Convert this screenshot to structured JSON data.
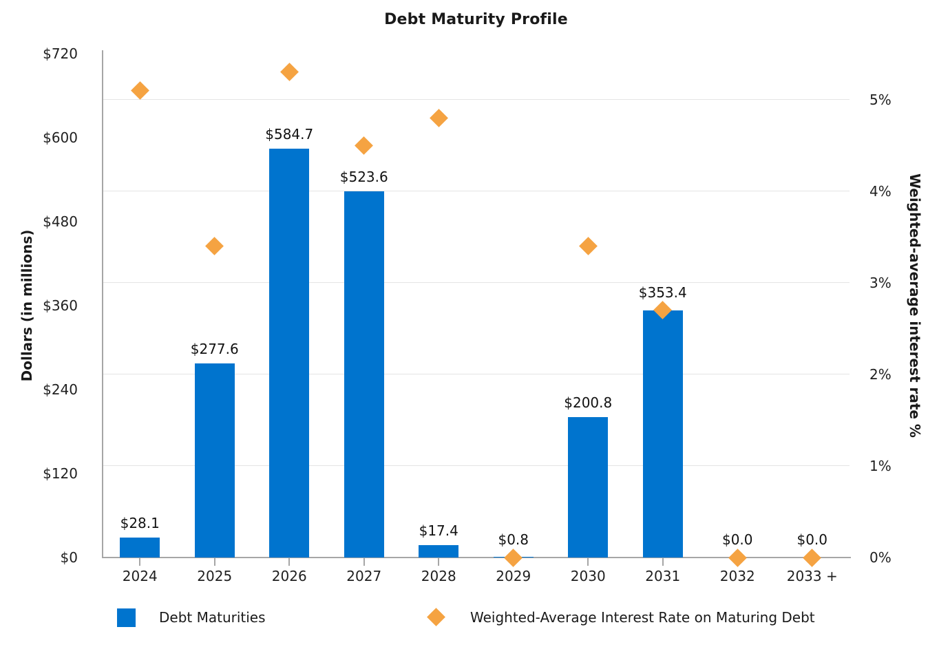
{
  "title": "Debt Maturity Profile",
  "colors": {
    "bar_blue": "#0074ce",
    "marker_orange": "#f5a342",
    "axis_gray": "#a6a6a6",
    "gridline_gray": "#e4e4e4",
    "text": "#1a1a1a"
  },
  "left_axis": {
    "title": "Dollars (in millions)",
    "ticks": [
      "$0",
      "$120",
      "$240",
      "$360",
      "$480",
      "$600",
      "$720"
    ]
  },
  "right_axis": {
    "title": "Weighted-average interest rate %",
    "ticks": [
      "0%",
      "1%",
      "2%",
      "3%",
      "4%",
      "5%"
    ]
  },
  "legend": {
    "bar_series_label": "Debt Maturities",
    "marker_series_label": "Weighted-Average Interest Rate on Maturing Debt"
  },
  "chart_data": {
    "type": "bar",
    "subtype": "dual-axis bar + diamond scatter",
    "title": "Debt Maturity Profile",
    "xlabel": "",
    "ylabel_left": "Dollars (in millions)",
    "ylabel_right": "Weighted-average interest rate %",
    "categories": [
      "2024",
      "2025",
      "2026",
      "2027",
      "2028",
      "2029",
      "2030",
      "2031",
      "2032",
      "2033 +"
    ],
    "left_axis_range": [
      0,
      720
    ],
    "right_axis_range": [
      0,
      5.5
    ],
    "grid": "horizontal gridlines at each 1% of right axis",
    "legend_position": "bottom",
    "series": [
      {
        "name": "Debt Maturities",
        "type": "bar",
        "axis": "left",
        "values": [
          28.1,
          277.6,
          584.7,
          523.6,
          17.4,
          0.8,
          200.8,
          353.4,
          0.0,
          0.0
        ],
        "labels": [
          "$28.1",
          "$277.6",
          "$584.7",
          "$523.6",
          "$17.4",
          "$0.8",
          "$200.8",
          "$353.4",
          "$0.0",
          "$0.0"
        ]
      },
      {
        "name": "Weighted-Average Interest Rate on Maturing Debt",
        "type": "scatter",
        "marker": "diamond",
        "axis": "right",
        "values": [
          5.1,
          3.4,
          5.3,
          4.5,
          4.8,
          0.0,
          3.4,
          2.7,
          0.0,
          0.0
        ]
      }
    ]
  }
}
